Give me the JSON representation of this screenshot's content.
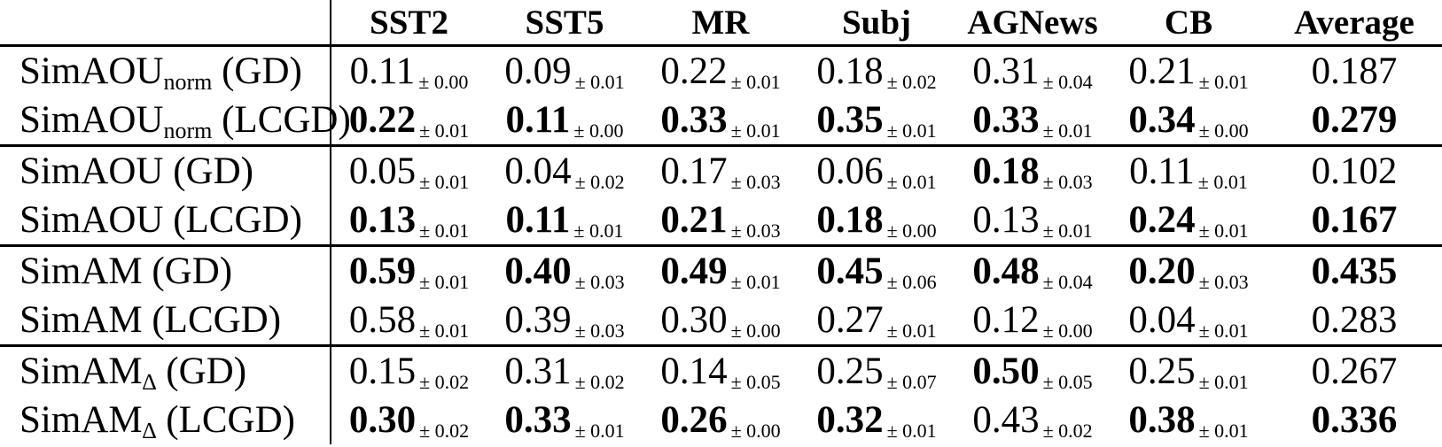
{
  "page": {
    "background_color": "#ffffff",
    "text_color": "#000000",
    "rule_color": "#000000"
  },
  "table": {
    "plus_minus": "±",
    "corner_label": "",
    "columns": [
      "SST2",
      "SST5",
      "MR",
      "Subj",
      "AGNews",
      "CB",
      "Average"
    ],
    "rows": [
      {
        "group_start": false,
        "label": {
          "base": "SimAOU",
          "sub": "norm",
          "method": "(GD)"
        },
        "values": [
          {
            "mean": "0.11",
            "std": "0.00",
            "bold": false
          },
          {
            "mean": "0.09",
            "std": "0.01",
            "bold": false
          },
          {
            "mean": "0.22",
            "std": "0.01",
            "bold": false
          },
          {
            "mean": "0.18",
            "std": "0.02",
            "bold": false
          },
          {
            "mean": "0.31",
            "std": "0.04",
            "bold": false
          },
          {
            "mean": "0.21",
            "std": "0.01",
            "bold": false
          }
        ],
        "average": {
          "value": "0.187",
          "bold": false
        }
      },
      {
        "group_start": false,
        "label": {
          "base": "SimAOU",
          "sub": "norm",
          "method": "(LCGD)"
        },
        "values": [
          {
            "mean": "0.22",
            "std": "0.01",
            "bold": true
          },
          {
            "mean": "0.11",
            "std": "0.00",
            "bold": true
          },
          {
            "mean": "0.33",
            "std": "0.01",
            "bold": true
          },
          {
            "mean": "0.35",
            "std": "0.01",
            "bold": true
          },
          {
            "mean": "0.33",
            "std": "0.01",
            "bold": true
          },
          {
            "mean": "0.34",
            "std": "0.00",
            "bold": true
          }
        ],
        "average": {
          "value": "0.279",
          "bold": true
        }
      },
      {
        "group_start": true,
        "label": {
          "base": "SimAOU",
          "sub": "",
          "method": "(GD)"
        },
        "values": [
          {
            "mean": "0.05",
            "std": "0.01",
            "bold": false
          },
          {
            "mean": "0.04",
            "std": "0.02",
            "bold": false
          },
          {
            "mean": "0.17",
            "std": "0.03",
            "bold": false
          },
          {
            "mean": "0.06",
            "std": "0.01",
            "bold": false
          },
          {
            "mean": "0.18",
            "std": "0.03",
            "bold": true
          },
          {
            "mean": "0.11",
            "std": "0.01",
            "bold": false
          }
        ],
        "average": {
          "value": "0.102",
          "bold": false
        }
      },
      {
        "group_start": false,
        "label": {
          "base": "SimAOU",
          "sub": "",
          "method": "(LCGD)"
        },
        "values": [
          {
            "mean": "0.13",
            "std": "0.01",
            "bold": true
          },
          {
            "mean": "0.11",
            "std": "0.01",
            "bold": true
          },
          {
            "mean": "0.21",
            "std": "0.03",
            "bold": true
          },
          {
            "mean": "0.18",
            "std": "0.00",
            "bold": true
          },
          {
            "mean": "0.13",
            "std": "0.01",
            "bold": false
          },
          {
            "mean": "0.24",
            "std": "0.01",
            "bold": true
          }
        ],
        "average": {
          "value": "0.167",
          "bold": true
        }
      },
      {
        "group_start": true,
        "label": {
          "base": "SimAM",
          "sub": "",
          "method": "(GD)"
        },
        "values": [
          {
            "mean": "0.59",
            "std": "0.01",
            "bold": true
          },
          {
            "mean": "0.40",
            "std": "0.03",
            "bold": true
          },
          {
            "mean": "0.49",
            "std": "0.01",
            "bold": true
          },
          {
            "mean": "0.45",
            "std": "0.06",
            "bold": true
          },
          {
            "mean": "0.48",
            "std": "0.04",
            "bold": true
          },
          {
            "mean": "0.20",
            "std": "0.03",
            "bold": true
          }
        ],
        "average": {
          "value": "0.435",
          "bold": true
        }
      },
      {
        "group_start": false,
        "label": {
          "base": "SimAM",
          "sub": "",
          "method": "(LCGD)"
        },
        "values": [
          {
            "mean": "0.58",
            "std": "0.01",
            "bold": false
          },
          {
            "mean": "0.39",
            "std": "0.03",
            "bold": false
          },
          {
            "mean": "0.30",
            "std": "0.00",
            "bold": false
          },
          {
            "mean": "0.27",
            "std": "0.01",
            "bold": false
          },
          {
            "mean": "0.12",
            "std": "0.00",
            "bold": false
          },
          {
            "mean": "0.04",
            "std": "0.01",
            "bold": false
          }
        ],
        "average": {
          "value": "0.283",
          "bold": false
        }
      },
      {
        "group_start": true,
        "label": {
          "base": "SimAM",
          "sub": "∆",
          "method": "(GD)"
        },
        "values": [
          {
            "mean": "0.15",
            "std": "0.02",
            "bold": false
          },
          {
            "mean": "0.31",
            "std": "0.02",
            "bold": false
          },
          {
            "mean": "0.14",
            "std": "0.05",
            "bold": false
          },
          {
            "mean": "0.25",
            "std": "0.07",
            "bold": false
          },
          {
            "mean": "0.50",
            "std": "0.05",
            "bold": true
          },
          {
            "mean": "0.25",
            "std": "0.01",
            "bold": false
          }
        ],
        "average": {
          "value": "0.267",
          "bold": false
        }
      },
      {
        "group_start": false,
        "label": {
          "base": "SimAM",
          "sub": "∆",
          "method": "(LCGD)"
        },
        "values": [
          {
            "mean": "0.30",
            "std": "0.02",
            "bold": true
          },
          {
            "mean": "0.33",
            "std": "0.01",
            "bold": true
          },
          {
            "mean": "0.26",
            "std": "0.00",
            "bold": true
          },
          {
            "mean": "0.32",
            "std": "0.01",
            "bold": true
          },
          {
            "mean": "0.43",
            "std": "0.02",
            "bold": false
          },
          {
            "mean": "0.38",
            "std": "0.01",
            "bold": true
          }
        ],
        "average": {
          "value": "0.336",
          "bold": true
        }
      }
    ]
  }
}
